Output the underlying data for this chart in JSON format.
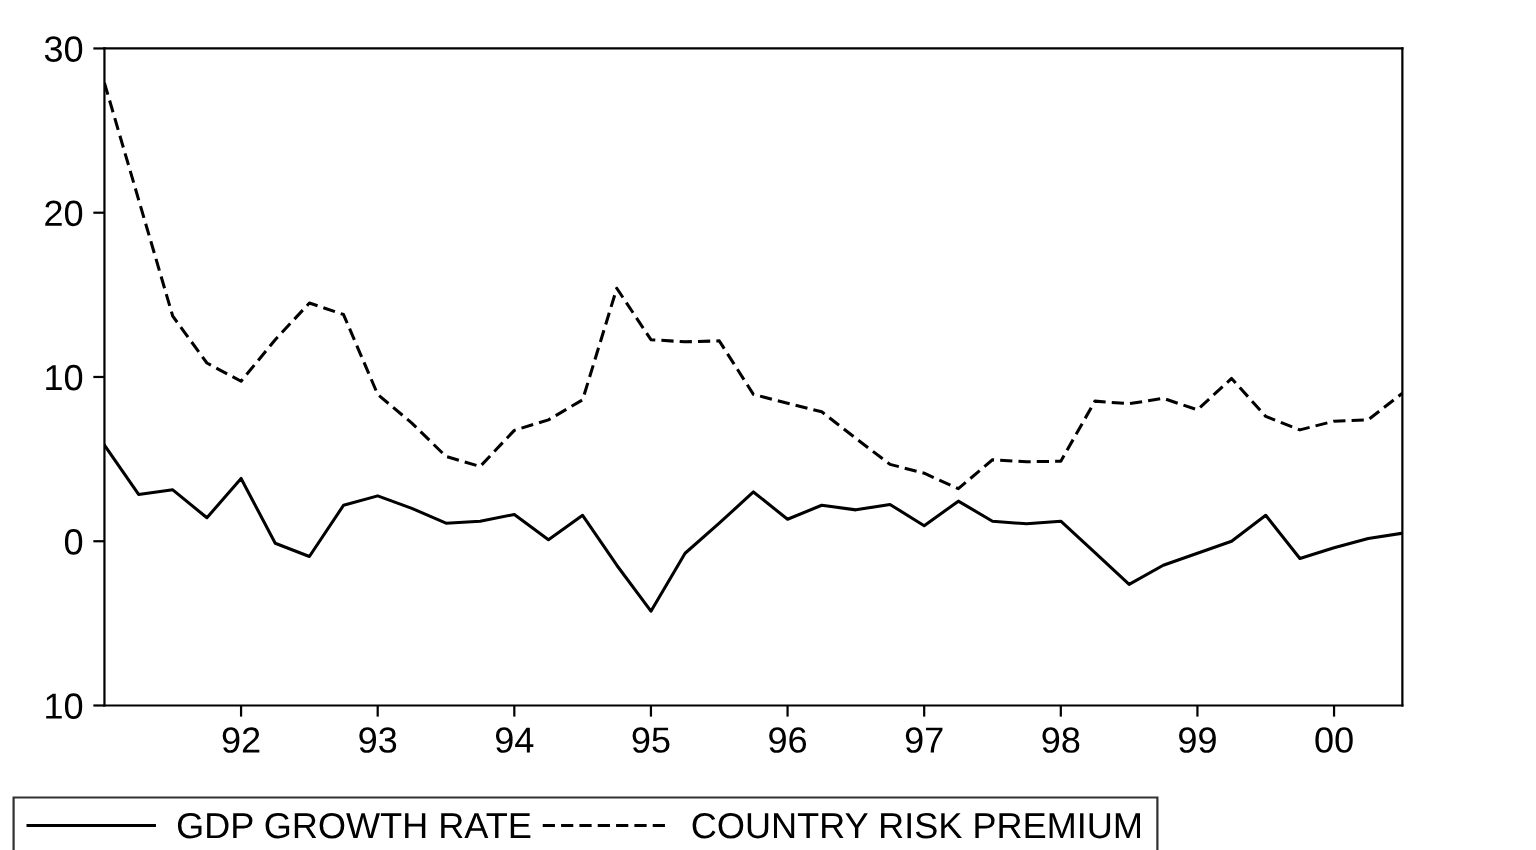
{
  "chart_data": {
    "type": "line",
    "x": [
      1991.0,
      1991.25,
      1991.5,
      1991.75,
      1992.0,
      1992.25,
      1992.5,
      1992.75,
      1993.0,
      1993.25,
      1993.5,
      1993.75,
      1994.0,
      1994.25,
      1994.5,
      1994.75,
      1995.0,
      1995.25,
      1995.5,
      1995.75,
      1996.0,
      1996.25,
      1996.5,
      1996.75,
      1997.0,
      1997.25,
      1997.5,
      1997.75,
      1998.0,
      1998.25,
      1998.5,
      1998.75,
      1999.0,
      1999.25,
      1999.5,
      1999.75,
      2000.0,
      2000.25,
      2000.5
    ],
    "series": [
      {
        "name": "GDP GROWTH RATE",
        "color": "#000000",
        "line_style": "solid",
        "values": [
          5.85,
          2.85,
          3.13,
          1.43,
          3.82,
          -0.12,
          -0.93,
          2.19,
          2.76,
          2.0,
          1.1,
          1.22,
          1.63,
          0.09,
          1.58,
          -1.46,
          -4.26,
          -0.73,
          1.1,
          3.0,
          1.34,
          2.19,
          1.91,
          2.24,
          0.94,
          2.44,
          1.22,
          1.06,
          1.22,
          -0.7,
          -2.63,
          -1.46,
          -0.73,
          0.0,
          1.58,
          -1.05,
          -0.4,
          0.17,
          0.49
        ]
      },
      {
        "name": "COUNTRY RISK PREMIUM",
        "color": "#000000",
        "line_style": "dashed",
        "values": [
          27.9,
          20.8,
          13.7,
          10.85,
          9.74,
          12.27,
          14.5,
          13.8,
          8.94,
          7.19,
          5.16,
          4.55,
          6.75,
          7.39,
          8.61,
          15.4,
          12.27,
          12.14,
          12.2,
          8.94,
          8.4,
          7.88,
          6.26,
          4.68,
          4.14,
          3.2,
          4.96,
          4.84,
          4.87,
          8.53,
          8.37,
          8.7,
          8.0,
          9.91,
          7.6,
          6.78,
          7.31,
          7.39,
          9.01
        ]
      }
    ],
    "xlim": [
      1991.0,
      2000.5
    ],
    "xticks": [
      {
        "value": 1992,
        "label": "92"
      },
      {
        "value": 1993,
        "label": "93"
      },
      {
        "value": 1994,
        "label": "94"
      },
      {
        "value": 1995,
        "label": "95"
      },
      {
        "value": 1996,
        "label": "96"
      },
      {
        "value": 1997,
        "label": "97"
      },
      {
        "value": 1998,
        "label": "98"
      },
      {
        "value": 1999,
        "label": "99"
      },
      {
        "value": 2000,
        "label": "00"
      }
    ],
    "ylim": [
      -10,
      30
    ],
    "yticks": [
      {
        "value": -10,
        "label": "10"
      },
      0,
      10,
      20,
      30
    ],
    "grid": false,
    "legend": "bottom"
  }
}
